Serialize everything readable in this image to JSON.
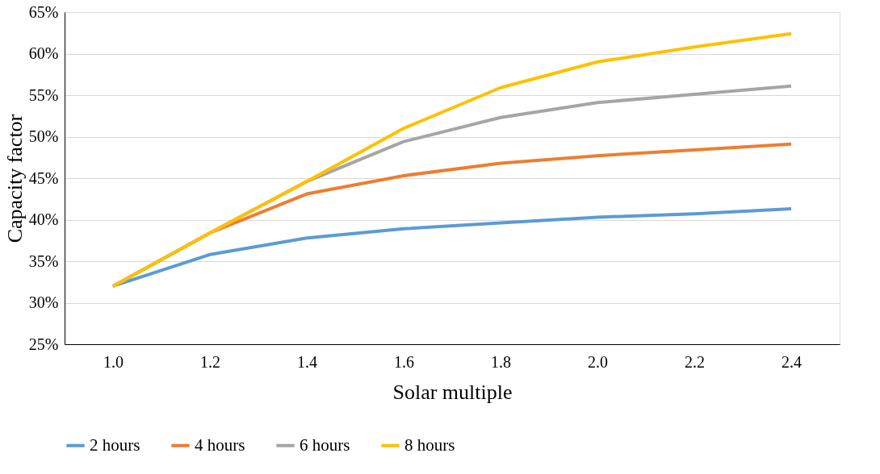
{
  "chart_data": {
    "type": "line",
    "xlabel": "Solar multiple",
    "ylabel": "Capacity factor",
    "categories": [
      "1.0",
      "1.2",
      "1.4",
      "1.6",
      "1.8",
      "2.0",
      "2.2",
      "2.4"
    ],
    "series": [
      {
        "name": "2 hours",
        "color": "#5b9bd5",
        "values": [
          32.0,
          35.8,
          37.8,
          38.9,
          39.6,
          40.3,
          40.7,
          41.3
        ]
      },
      {
        "name": "4 hours",
        "color": "#ed7d31",
        "values": [
          32.0,
          38.4,
          43.1,
          45.3,
          46.8,
          47.7,
          48.4,
          49.1
        ]
      },
      {
        "name": "6 hours",
        "color": "#a5a5a5",
        "values": [
          32.0,
          38.4,
          44.6,
          49.4,
          52.3,
          54.1,
          55.1,
          56.1
        ]
      },
      {
        "name": "8 hours",
        "color": "#ffc000",
        "values": [
          32.0,
          38.4,
          44.6,
          51.0,
          55.9,
          59.0,
          60.8,
          62.4
        ]
      }
    ],
    "ylim": [
      25,
      65
    ],
    "yticks": [
      {
        "value": 25,
        "label": "25%"
      },
      {
        "value": 30,
        "label": "30%"
      },
      {
        "value": 35,
        "label": "35%"
      },
      {
        "value": 40,
        "label": "40%"
      },
      {
        "value": 45,
        "label": "45%"
      },
      {
        "value": 50,
        "label": "50%"
      },
      {
        "value": 55,
        "label": "55%"
      },
      {
        "value": 60,
        "label": "60%"
      },
      {
        "value": 65,
        "label": "65%"
      }
    ],
    "grid": "y",
    "legend": "bottom",
    "marker": "none",
    "line_style": "solid"
  }
}
